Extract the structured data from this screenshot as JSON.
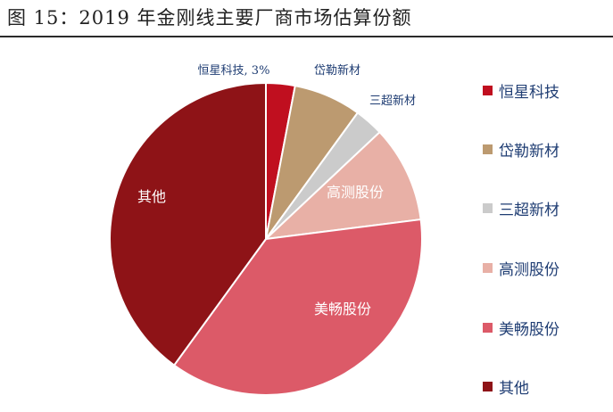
{
  "title": "图 15：2019 年金刚线主要厂商市场估算份额",
  "chart_data": {
    "type": "pie",
    "start_angle_deg": 0,
    "direction": "clockwise",
    "slices": [
      {
        "name": "恒星科技",
        "value": 3,
        "label": "恒星科技, 3%",
        "color": "#c00f1f"
      },
      {
        "name": "岱勒新材",
        "value": 7,
        "label": "岱勒新材",
        "color": "#bc9a70"
      },
      {
        "name": "三超新材",
        "value": 3,
        "label": "三超新材",
        "color": "#cbcbcb"
      },
      {
        "name": "高测股份",
        "value": 10,
        "label": "高测股份",
        "color": "#e8b0a6"
      },
      {
        "name": "美畅股份",
        "value": 37,
        "label": "美畅股份",
        "color": "#dc5a68"
      },
      {
        "name": "其他",
        "value": 40,
        "label": "其他",
        "color": "#8e1317"
      }
    ],
    "legend_position": "right"
  }
}
